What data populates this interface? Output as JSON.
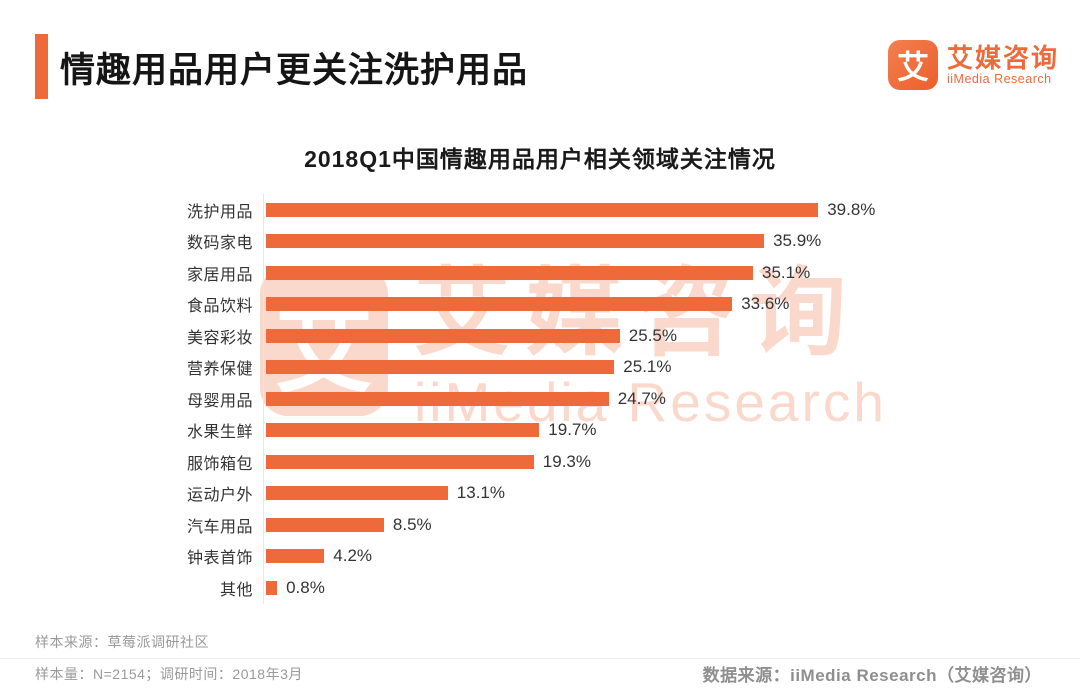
{
  "header": {
    "title": "情趣用品用户更关注洗护用品",
    "logo": {
      "icon_char": "艾",
      "name_cn": "艾媒咨询",
      "name_en": "iiMedia Research"
    }
  },
  "chart_data": {
    "type": "bar",
    "orientation": "horizontal",
    "title": "2018Q1中国情趣用品用户相关领域关注情况",
    "categories": [
      "洗护用品",
      "数码家电",
      "家居用品",
      "食品饮料",
      "美容彩妆",
      "营养保健",
      "母婴用品",
      "水果生鲜",
      "服饰箱包",
      "运动户外",
      "汽车用品",
      "钟表首饰",
      "其他"
    ],
    "values": [
      39.8,
      35.9,
      35.1,
      33.6,
      25.5,
      25.1,
      24.7,
      19.7,
      19.3,
      13.1,
      8.5,
      4.2,
      0.8
    ],
    "value_labels": [
      "39.8%",
      "35.9%",
      "35.1%",
      "33.6%",
      "25.5%",
      "25.1%",
      "24.7%",
      "19.7%",
      "19.3%",
      "13.1%",
      "8.5%",
      "4.2%",
      "0.8%"
    ],
    "xlabel": "",
    "ylabel": "",
    "xlim": [
      0,
      40
    ],
    "grid": false,
    "legend": false,
    "bar_color": "#ee6a3b"
  },
  "watermark": {
    "icon_char": "艾",
    "text_cn": "艾媒咨询",
    "text_en": "iiMedia Research"
  },
  "footer": {
    "sample_source": "样本来源：草莓派调研社区",
    "sample_size": "样本量：N=2154；调研时间：2018年3月",
    "data_source": "数据来源：iiMedia Research（艾媒咨询）"
  },
  "colors": {
    "accent": "#ee6a3b",
    "title_text": "#151515",
    "label_text": "#333333",
    "footer_text": "#9a9a9a"
  }
}
